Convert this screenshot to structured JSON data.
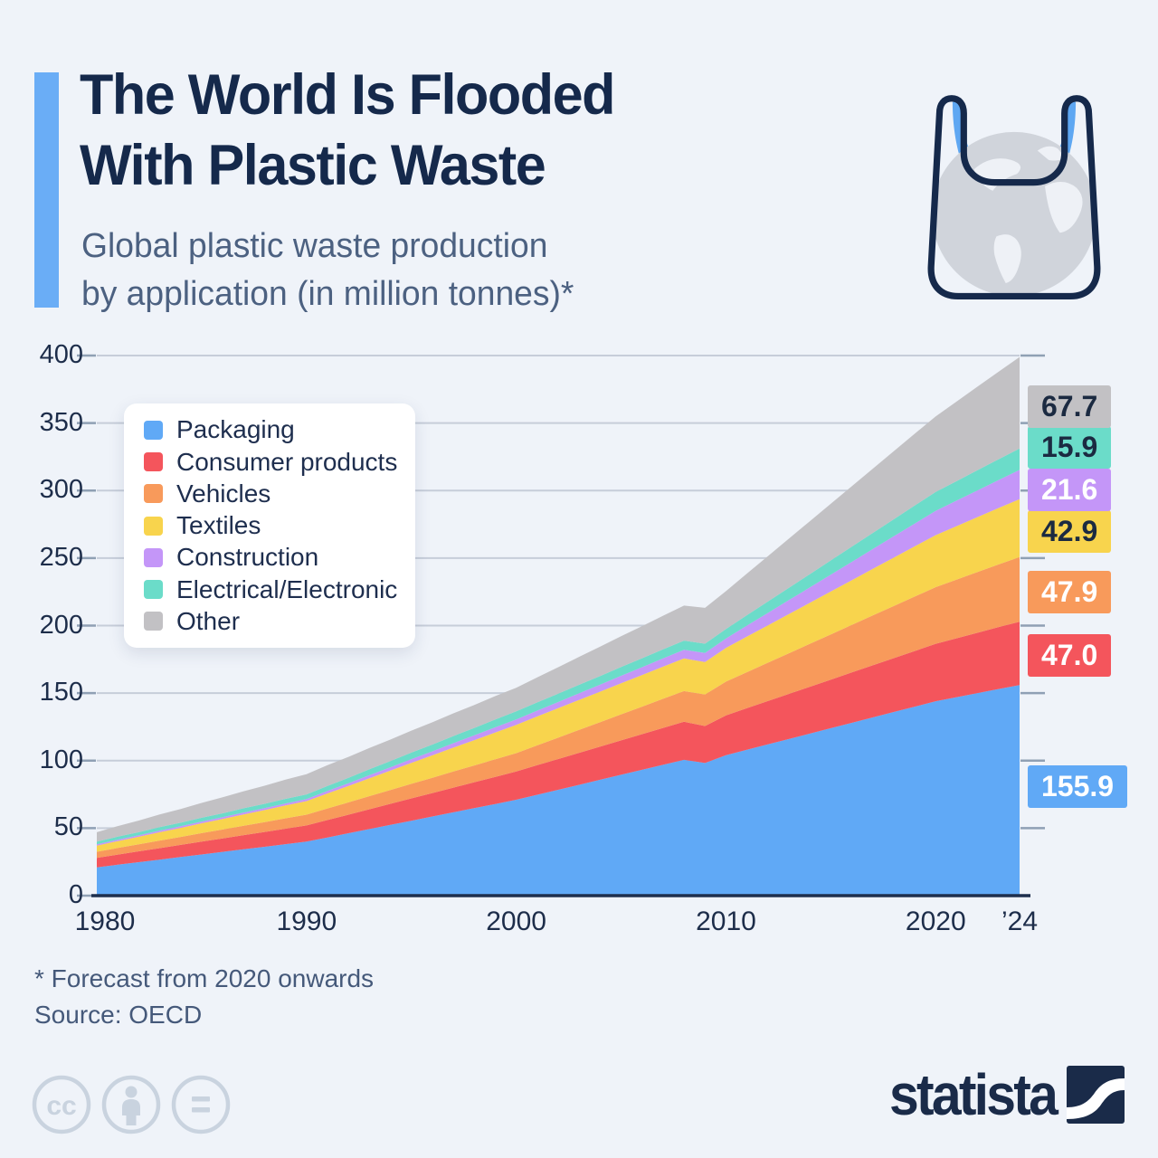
{
  "header": {
    "title_line1": "The World Is Flooded",
    "title_line2": "With Plastic Waste",
    "subtitle_line1": "Global plastic waste production",
    "subtitle_line2": "by application (in million tonnes)*",
    "accent_color": "#6aadf6"
  },
  "chart_data": {
    "type": "area",
    "stacked": true,
    "title": "Global plastic waste production by application (in million tonnes)",
    "unit": "million tonnes",
    "grid": true,
    "legend_position": "top-left",
    "ylim": [
      0,
      400
    ],
    "y_ticks": [
      0,
      50,
      100,
      150,
      200,
      250,
      300,
      350,
      400
    ],
    "x_tick_years": [
      1980,
      1990,
      2000,
      2010,
      2020,
      2024
    ],
    "x_tick_labels": [
      "1980",
      "1990",
      "2000",
      "2010",
      "2020",
      "’24"
    ],
    "x": [
      1980,
      1981,
      1982,
      1983,
      1984,
      1985,
      1986,
      1987,
      1988,
      1989,
      1990,
      1991,
      1992,
      1993,
      1994,
      1995,
      1996,
      1997,
      1998,
      1999,
      2000,
      2001,
      2002,
      2003,
      2004,
      2005,
      2006,
      2007,
      2008,
      2009,
      2010,
      2011,
      2012,
      2013,
      2014,
      2015,
      2016,
      2017,
      2018,
      2019,
      2020,
      2021,
      2022,
      2023,
      2024
    ],
    "series": [
      {
        "name": "Packaging",
        "color": "#60a9f6",
        "end_label": "155.9",
        "label_text": "light",
        "values": [
          21.0,
          22.9,
          24.8,
          26.7,
          28.6,
          30.5,
          32.4,
          34.3,
          36.2,
          38.1,
          40.0,
          43.1,
          46.2,
          49.3,
          52.4,
          55.5,
          58.6,
          61.7,
          64.8,
          67.9,
          71.0,
          74.7,
          78.4,
          82.1,
          85.8,
          89.5,
          93.2,
          96.9,
          100.6,
          98.2,
          104.0,
          108.0,
          112.0,
          116.0,
          120.0,
          124.0,
          128.0,
          132.0,
          136.0,
          140.0,
          144.0,
          147.0,
          150.0,
          153.0,
          155.9
        ]
      },
      {
        "name": "Consumer products",
        "color": "#f4555c",
        "end_label": "47.0",
        "label_text": "light",
        "values": [
          7.0,
          7.5,
          8.0,
          8.5,
          9.0,
          9.5,
          10.0,
          10.5,
          11.0,
          11.5,
          12.0,
          12.9,
          13.8,
          14.7,
          15.6,
          16.5,
          17.4,
          18.3,
          19.2,
          20.1,
          21.0,
          21.9,
          22.8,
          23.7,
          24.6,
          25.5,
          26.4,
          27.3,
          28.2,
          27.4,
          29.5,
          30.8,
          32.1,
          33.4,
          34.7,
          36.0,
          37.3,
          38.6,
          39.9,
          41.2,
          42.5,
          43.6,
          44.7,
          45.9,
          47.0
        ]
      },
      {
        "name": "Vehicles",
        "color": "#f89a5b",
        "end_label": "47.9",
        "label_text": "light",
        "values": [
          4.5,
          4.9,
          5.2,
          5.6,
          5.9,
          6.3,
          6.6,
          7.0,
          7.3,
          7.7,
          8.0,
          8.6,
          9.1,
          9.7,
          10.2,
          10.8,
          11.3,
          11.9,
          12.4,
          13.0,
          13.5,
          14.7,
          15.8,
          17.0,
          18.1,
          19.3,
          20.4,
          21.6,
          22.7,
          23.4,
          25.0,
          26.7,
          28.4,
          30.1,
          31.8,
          33.5,
          35.2,
          36.9,
          38.6,
          40.3,
          42.0,
          43.5,
          45.0,
          46.4,
          47.9
        ]
      },
      {
        "name": "Textiles",
        "color": "#f8d44d",
        "end_label": "42.9",
        "label_text": "dark",
        "values": [
          4.5,
          5.1,
          5.6,
          6.2,
          6.7,
          7.3,
          7.8,
          8.4,
          8.9,
          9.5,
          10.0,
          11.1,
          12.2,
          13.3,
          14.4,
          15.5,
          16.6,
          17.7,
          18.8,
          19.9,
          21.0,
          21.4,
          21.8,
          22.2,
          22.6,
          23.0,
          23.4,
          23.8,
          24.2,
          24.0,
          25.0,
          26.4,
          27.7,
          29.1,
          30.4,
          31.8,
          33.1,
          34.5,
          35.8,
          37.2,
          38.5,
          39.6,
          40.7,
          41.8,
          42.9
        ]
      },
      {
        "name": "Construction",
        "color": "#c496f8",
        "end_label": "21.6",
        "label_text": "light",
        "values": [
          1.0,
          1.1,
          1.1,
          1.2,
          1.2,
          1.3,
          1.3,
          1.4,
          1.4,
          1.5,
          1.5,
          1.8,
          2.0,
          2.3,
          2.5,
          2.8,
          3.0,
          3.3,
          3.5,
          3.8,
          4.0,
          4.3,
          4.6,
          4.9,
          5.2,
          5.5,
          5.8,
          6.1,
          6.4,
          6.7,
          7.0,
          8.1,
          9.2,
          10.3,
          11.4,
          12.5,
          13.6,
          14.7,
          15.8,
          16.9,
          18.0,
          18.9,
          19.8,
          20.7,
          21.6
        ]
      },
      {
        "name": "Electrical/Electronic",
        "color": "#6bdcc9",
        "end_label": "15.9",
        "label_text": "dark",
        "values": [
          2.0,
          2.2,
          2.3,
          2.5,
          2.6,
          2.8,
          2.9,
          3.1,
          3.2,
          3.4,
          3.5,
          3.8,
          4.0,
          4.3,
          4.5,
          4.8,
          5.0,
          5.3,
          5.5,
          5.8,
          6.0,
          6.1,
          6.2,
          6.3,
          6.4,
          6.5,
          6.6,
          6.7,
          6.8,
          6.9,
          7.0,
          7.7,
          8.4,
          9.1,
          9.8,
          10.5,
          11.2,
          11.9,
          12.6,
          13.3,
          14.0,
          14.5,
          15.0,
          15.4,
          15.9
        ]
      },
      {
        "name": "Other",
        "color": "#c2c1c4",
        "end_label": "67.7",
        "label_text": "dark",
        "values": [
          7.0,
          7.8,
          8.6,
          9.4,
          10.2,
          11.0,
          11.8,
          12.6,
          13.4,
          14.2,
          15.0,
          15.3,
          15.5,
          15.8,
          16.0,
          16.3,
          16.5,
          16.8,
          17.0,
          17.3,
          17.5,
          18.6,
          19.6,
          20.7,
          21.7,
          22.8,
          23.8,
          24.9,
          25.9,
          26.5,
          28.0,
          30.8,
          33.6,
          36.4,
          39.2,
          42.0,
          44.8,
          47.6,
          50.4,
          53.2,
          56.0,
          58.9,
          61.8,
          64.8,
          67.7
        ]
      }
    ]
  },
  "footnotes": {
    "forecast": "* Forecast from 2020 onwards",
    "source": "Source: OECD"
  },
  "branding": {
    "logo_text": "statista",
    "license_icons": [
      "cc",
      "attribution",
      "no-derivatives"
    ]
  },
  "colors": {
    "background": "#eff3f9",
    "title_text": "#15294b",
    "subtitle_text": "#4c6181",
    "axis_text": "#1d2d4a",
    "gridline": "#c6cdd9",
    "tick": "#8fa0b4",
    "axis_line": "#1e2f4d",
    "label_dark_text": "#1b2a41",
    "label_light_text": "#ffffff"
  }
}
